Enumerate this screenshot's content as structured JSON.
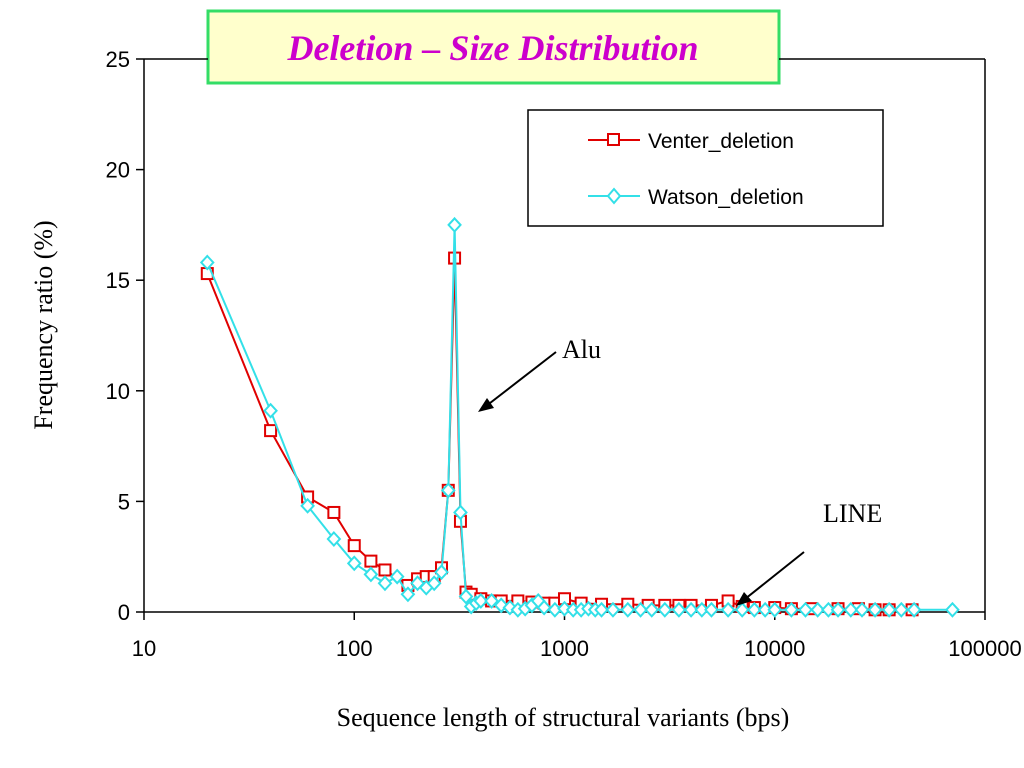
{
  "chart_data": {
    "type": "line",
    "title": "Deletion – Size Distribution",
    "xlabel": "Sequence length of structural variants (bps)",
    "ylabel": "Frequency ratio (%)",
    "xscale": "log",
    "xlim": [
      10,
      100000
    ],
    "ylim": [
      0,
      25
    ],
    "xticks": [
      "10",
      "100",
      "1000",
      "10000",
      "100000"
    ],
    "yticks": [
      "0",
      "5",
      "10",
      "15",
      "20",
      "25"
    ],
    "grid": false,
    "legend_position": "top-right",
    "annotations": [
      {
        "text": "Alu",
        "points_to": {
          "x": 390,
          "y": 9
        }
      },
      {
        "text": "LINE",
        "points_to": {
          "x": 6300,
          "y": 0.2
        }
      }
    ],
    "series": [
      {
        "name": "Venter_deletion",
        "color": "#e00000",
        "marker": "square",
        "x": [
          20,
          40,
          60,
          80,
          100,
          120,
          140,
          180,
          200,
          220,
          240,
          260,
          280,
          300,
          320,
          340,
          360,
          400,
          450,
          500,
          600,
          700,
          800,
          900,
          1000,
          1200,
          1500,
          2000,
          2500,
          3000,
          3500,
          4000,
          5000,
          6000,
          7000,
          8000,
          10000,
          12000,
          15000,
          20000,
          25000,
          30000,
          35000,
          45000
        ],
        "y": [
          15.3,
          8.2,
          5.2,
          4.5,
          3.0,
          2.3,
          1.9,
          1.2,
          1.5,
          1.6,
          1.6,
          2.0,
          5.5,
          16.0,
          4.1,
          0.9,
          0.8,
          0.6,
          0.5,
          0.5,
          0.5,
          0.45,
          0.4,
          0.4,
          0.6,
          0.4,
          0.35,
          0.35,
          0.3,
          0.3,
          0.3,
          0.3,
          0.3,
          0.5,
          0.25,
          0.2,
          0.2,
          0.15,
          0.15,
          0.15,
          0.15,
          0.1,
          0.1,
          0.1
        ]
      },
      {
        "name": "Watson_deletion",
        "color": "#33e0e8",
        "marker": "diamond",
        "x": [
          20,
          40,
          60,
          80,
          100,
          120,
          140,
          160,
          180,
          200,
          220,
          240,
          260,
          280,
          300,
          320,
          340,
          360,
          380,
          400,
          450,
          500,
          550,
          600,
          650,
          700,
          750,
          800,
          900,
          1000,
          1100,
          1200,
          1300,
          1400,
          1500,
          1700,
          2000,
          2300,
          2600,
          3000,
          3500,
          4000,
          4500,
          5000,
          6000,
          7000,
          8000,
          9000,
          10000,
          12000,
          14000,
          16000,
          18000,
          20000,
          23000,
          26000,
          30000,
          35000,
          40000,
          46000,
          70000
        ],
        "y": [
          15.8,
          9.1,
          4.8,
          3.3,
          2.2,
          1.7,
          1.3,
          1.6,
          0.8,
          1.3,
          1.1,
          1.3,
          1.8,
          5.5,
          17.5,
          4.5,
          0.7,
          0.25,
          0.4,
          0.5,
          0.5,
          0.3,
          0.2,
          0.1,
          0.15,
          0.3,
          0.5,
          0.2,
          0.1,
          0.15,
          0.1,
          0.1,
          0.15,
          0.1,
          0.1,
          0.1,
          0.1,
          0.1,
          0.1,
          0.1,
          0.1,
          0.1,
          0.1,
          0.1,
          0.1,
          0.1,
          0.1,
          0.1,
          0.1,
          0.1,
          0.1,
          0.1,
          0.1,
          0.1,
          0.1,
          0.1,
          0.1,
          0.1,
          0.1,
          0.1,
          0.1
        ]
      }
    ]
  }
}
